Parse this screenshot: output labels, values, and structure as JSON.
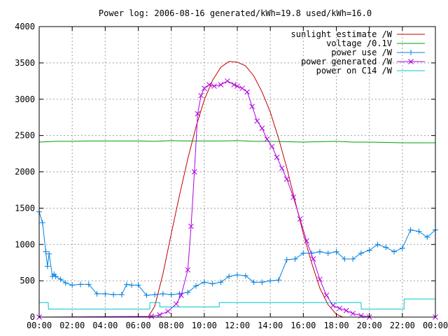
{
  "chart_data": {
    "type": "line",
    "title": "Power log: 2006-08-16 generated/kWh=19.8 used/kWh=16.0",
    "xlabel": "",
    "ylabel": "",
    "xlim": [
      0,
      24
    ],
    "ylim": [
      0,
      4000
    ],
    "x_ticks": [
      0,
      2,
      4,
      6,
      8,
      10,
      12,
      14,
      16,
      18,
      20,
      22,
      24
    ],
    "x_tick_labels": [
      "00:00",
      "02:00",
      "04:00",
      "06:00",
      "08:00",
      "10:00",
      "12:00",
      "14:00",
      "16:00",
      "18:00",
      "20:00",
      "22:00",
      "00:00"
    ],
    "y_ticks": [
      0,
      500,
      1000,
      1500,
      2000,
      2500,
      3000,
      3500,
      4000
    ],
    "y_tick_labels": [
      "0",
      "500",
      "1000",
      "1500",
      "2000",
      "2500",
      "3000",
      "3500",
      "4000"
    ],
    "grid": true,
    "legend_position": "top-right",
    "series": [
      {
        "name": "sunlight estimate /W",
        "color": "#c00000",
        "marker": "none",
        "x": [
          6.6,
          7,
          7.5,
          8,
          8.5,
          9,
          9.5,
          10,
          10.5,
          11,
          11.5,
          12,
          12.5,
          13,
          13.5,
          14,
          14.5,
          15,
          15.5,
          16,
          16.5,
          17,
          17.5,
          18,
          18.4
        ],
        "y": [
          0,
          150,
          600,
          1150,
          1680,
          2180,
          2620,
          2990,
          3260,
          3440,
          3520,
          3510,
          3460,
          3320,
          3100,
          2820,
          2460,
          2050,
          1600,
          1150,
          750,
          400,
          170,
          40,
          0
        ]
      },
      {
        "name": "voltage /0.1V",
        "color": "#00a000",
        "marker": "none",
        "x": [
          0,
          1,
          2,
          3,
          4,
          5,
          6,
          7,
          8,
          9,
          10,
          11,
          12,
          13,
          14,
          15,
          16,
          17,
          18,
          19,
          20,
          21,
          22,
          23,
          24
        ],
        "y": [
          2410,
          2420,
          2420,
          2425,
          2425,
          2425,
          2425,
          2420,
          2430,
          2425,
          2425,
          2425,
          2430,
          2420,
          2420,
          2415,
          2410,
          2415,
          2420,
          2410,
          2410,
          2405,
          2400,
          2400,
          2400
        ]
      },
      {
        "name": "power use /W",
        "color": "#0080e0",
        "marker": "plus",
        "x": [
          0,
          0.2,
          0.4,
          0.5,
          0.6,
          0.8,
          0.9,
          1,
          1.3,
          1.6,
          2,
          2.5,
          3,
          3.5,
          4,
          4.5,
          5,
          5.3,
          5.6,
          6,
          6.5,
          7,
          7.5,
          8,
          8.5,
          9,
          9.5,
          10,
          10.5,
          11,
          11.5,
          12,
          12.5,
          13,
          13.5,
          14,
          14.5,
          15,
          15.5,
          16,
          16.5,
          17,
          17.5,
          18,
          18.5,
          19,
          19.5,
          20,
          20.5,
          21,
          21.5,
          22,
          22.5,
          23,
          23.5,
          24
        ],
        "y": [
          1450,
          1300,
          900,
          700,
          870,
          560,
          590,
          560,
          520,
          470,
          440,
          450,
          450,
          320,
          320,
          310,
          310,
          450,
          440,
          440,
          300,
          310,
          320,
          310,
          320,
          340,
          430,
          480,
          460,
          480,
          560,
          580,
          570,
          480,
          480,
          500,
          510,
          790,
          800,
          880,
          880,
          900,
          880,
          900,
          800,
          800,
          880,
          920,
          1000,
          960,
          900,
          950,
          1200,
          1180,
          1100,
          1200
        ]
      },
      {
        "name": "power generated /W",
        "color": "#b000e0",
        "marker": "cross",
        "x": [
          0,
          6.8,
          7.3,
          7.8,
          8.3,
          8.6,
          9,
          9.2,
          9.4,
          9.6,
          9.8,
          10,
          10.3,
          10.6,
          11,
          11.4,
          11.8,
          12,
          12.3,
          12.6,
          12.9,
          13.2,
          13.5,
          13.8,
          14.1,
          14.4,
          14.7,
          15,
          15.4,
          15.8,
          16.2,
          16.6,
          17,
          17.4,
          17.8,
          18.2,
          18.6,
          19,
          19.5,
          20,
          24
        ],
        "y": [
          0,
          10,
          30,
          80,
          180,
          300,
          650,
          1250,
          2000,
          2800,
          3050,
          3150,
          3200,
          3180,
          3200,
          3250,
          3200,
          3180,
          3150,
          3100,
          2900,
          2700,
          2600,
          2450,
          2350,
          2200,
          2050,
          1900,
          1650,
          1350,
          1050,
          800,
          520,
          300,
          160,
          120,
          90,
          50,
          20,
          0,
          0
        ]
      },
      {
        "name": "power on C14 /W",
        "color": "#00c8c8",
        "marker": "none",
        "x": [
          0,
          0.55,
          0.56,
          6.7,
          6.71,
          7.3,
          7.31,
          10.9,
          10.91,
          19.5,
          19.51,
          22.1,
          22.11,
          24
        ],
        "y": [
          200,
          200,
          110,
          110,
          200,
          200,
          140,
          140,
          200,
          200,
          110,
          110,
          250,
          250
        ]
      }
    ]
  }
}
